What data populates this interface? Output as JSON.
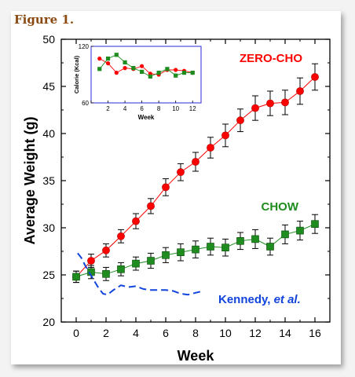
{
  "figure_label": "Figure 1.",
  "chart_data": [
    {
      "type": "line",
      "xlabel": "Week",
      "ylabel": "Average Weight (g)",
      "xlim": [
        -1,
        17
      ],
      "ylim": [
        20,
        50
      ],
      "xticks": [
        0,
        2,
        4,
        6,
        8,
        10,
        12,
        14,
        16
      ],
      "yticks": [
        20,
        25,
        30,
        35,
        40,
        45,
        50
      ],
      "series": [
        {
          "name": "ZERO-CHO",
          "color": "#ff0000",
          "marker": "circle",
          "x": [
            0,
            1,
            2,
            3,
            4,
            5,
            6,
            7,
            8,
            9,
            10,
            11,
            12,
            13,
            14,
            15,
            16
          ],
          "y": [
            24.8,
            26.5,
            27.6,
            29.1,
            30.7,
            32.3,
            34.3,
            35.9,
            37.0,
            38.5,
            39.8,
            41.4,
            42.7,
            43.2,
            43.3,
            44.5,
            46.0
          ],
          "err": [
            0.6,
            0.7,
            0.7,
            0.7,
            0.8,
            0.8,
            0.9,
            0.9,
            1.0,
            1.1,
            1.2,
            1.2,
            1.3,
            1.3,
            1.3,
            1.4,
            1.4
          ]
        },
        {
          "name": "CHOW",
          "color": "#1e8c1e",
          "marker": "square",
          "x": [
            0,
            1,
            2,
            3,
            4,
            5,
            6,
            7,
            8,
            9,
            10,
            11,
            12,
            13,
            14,
            15,
            16
          ],
          "y": [
            24.8,
            25.3,
            25.1,
            25.6,
            26.2,
            26.5,
            27.1,
            27.4,
            27.7,
            28.0,
            27.9,
            28.6,
            28.8,
            28.0,
            29.3,
            29.7,
            30.4
          ],
          "err": [
            0.6,
            0.7,
            0.7,
            0.7,
            0.7,
            0.8,
            0.8,
            0.9,
            0.9,
            0.9,
            0.9,
            0.9,
            1.0,
            0.9,
            1.0,
            1.0,
            1.0
          ]
        },
        {
          "name": "Kennedy, et al.",
          "name_main": "Kennedy, ",
          "name_italic": "et al.",
          "color": "#1144dd",
          "style": "dashed",
          "x": [
            0.1,
            0.35,
            0.6,
            0.9,
            1.2,
            1.5,
            1.8,
            2.1,
            2.5,
            3.0,
            3.5,
            4.0,
            4.5,
            5.0,
            5.5,
            6.0,
            6.5,
            7.0,
            7.5,
            8.0,
            8.5
          ],
          "y": [
            27.3,
            26.8,
            26.0,
            25.2,
            24.4,
            23.6,
            23.0,
            22.9,
            23.4,
            23.9,
            23.7,
            23.8,
            23.5,
            23.4,
            23.4,
            23.4,
            23.3,
            23.0,
            22.9,
            23.1,
            23.3
          ]
        }
      ]
    },
    {
      "type": "line",
      "inset": true,
      "xlabel": "Week",
      "ylabel": "Calorie (Kcal)",
      "xlim": [
        0,
        13
      ],
      "ylim": [
        60,
        120
      ],
      "xticks": [
        0,
        2,
        4,
        6,
        8,
        10,
        12
      ],
      "yticks": [
        60,
        120
      ],
      "series": [
        {
          "name": "ZERO-CHO",
          "color": "#ff0000",
          "marker": "circle",
          "x": [
            1,
            2,
            3,
            4,
            5,
            6,
            7,
            8,
            9,
            10,
            11,
            12
          ],
          "y": [
            107,
            102,
            92,
            97,
            96,
            99,
            91,
            90,
            95,
            95,
            94,
            92
          ]
        },
        {
          "name": "CHOW",
          "color": "#1e8c1e",
          "marker": "square",
          "x": [
            1,
            2,
            3,
            4,
            5,
            6,
            7,
            8,
            9,
            10,
            11,
            12
          ],
          "y": [
            96,
            107,
            111,
            103,
            97,
            93,
            88,
            92,
            96,
            89,
            92,
            92
          ]
        }
      ]
    }
  ]
}
